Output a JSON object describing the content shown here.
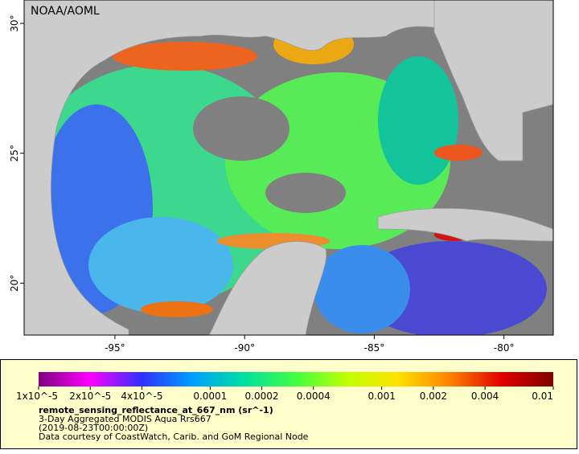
{
  "map": {
    "credit": "NOAA/AOML",
    "xlim": [
      -98.5,
      -78.1
    ],
    "ylim": [
      18,
      30.9
    ],
    "xticks": [
      {
        "value": -95,
        "label": "-95°"
      },
      {
        "value": -90,
        "label": "-90°"
      },
      {
        "value": -85,
        "label": "-85°"
      },
      {
        "value": -80,
        "label": "-80°"
      }
    ],
    "yticks": [
      {
        "value": 20,
        "label": "20°"
      },
      {
        "value": 25,
        "label": "25°"
      },
      {
        "value": 30,
        "label": "30°"
      }
    ]
  },
  "legend": {
    "scale": "log",
    "lim": [
      1e-05,
      0.01
    ],
    "ticks": [
      {
        "value": 1e-05,
        "label": "1x10^-5"
      },
      {
        "value": 2e-05,
        "label": "2x10^-5"
      },
      {
        "value": 4e-05,
        "label": "4x10^-5"
      },
      0.0001,
      0.0002,
      0.0004,
      0.001,
      0.002,
      0.004,
      0.01
    ],
    "colors": [
      "#800080",
      "#ff00ff",
      "#3030ff",
      "#00a0ff",
      "#00e0a0",
      "#40ff40",
      "#c0ff00",
      "#ffe000",
      "#ff8000",
      "#e00000",
      "#800000"
    ],
    "variable": "remote_sensing_reflectance_at_667_nm (sr^-1)",
    "lines": [
      "3-Day Aggregated MODIS Aqua Rrs667",
      "(2019-08-23T00:00:00Z)",
      "Data courtesy of CoastWatch, Carib. and GoM Regional Node"
    ]
  }
}
